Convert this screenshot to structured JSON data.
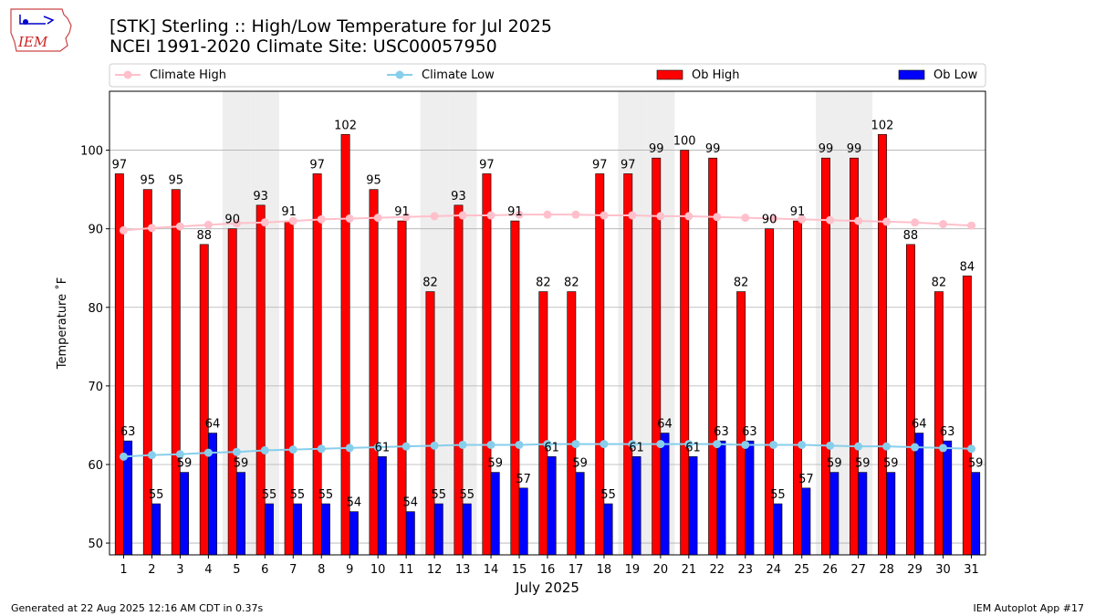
{
  "header": {
    "title_line1": "[STK] Sterling :: High/Low Temperature for Jul 2025",
    "title_line2": "NCEI 1991-2020 Climate Site: USC00057950"
  },
  "logo": {
    "text": "IEM"
  },
  "footer": {
    "left": "Generated at 22 Aug 2025 12:16 AM CDT in 0.37s",
    "right": "IEM Autoplot App #17"
  },
  "colors": {
    "ob_high": "#ff0000",
    "ob_low": "#0000ff",
    "climate_high": "#ffc0cb",
    "climate_low": "#87ceeb",
    "weekend_shade": "#eeeeee",
    "grid": "#b0b0b0"
  },
  "chart_data": {
    "type": "bar",
    "title": "[STK] Sterling :: High/Low Temperature for Jul 2025",
    "xlabel": "July 2025",
    "ylabel": "Temperature ˚F",
    "ylim": [
      48.5,
      107.5
    ],
    "yticks": [
      50,
      60,
      70,
      80,
      90,
      100
    ],
    "grid": true,
    "legend_position": "top",
    "categories": [
      1,
      2,
      3,
      4,
      5,
      6,
      7,
      8,
      9,
      10,
      11,
      12,
      13,
      14,
      15,
      16,
      17,
      18,
      19,
      20,
      21,
      22,
      23,
      24,
      25,
      26,
      27,
      28,
      29,
      30,
      31
    ],
    "shaded_days": [
      5,
      6,
      12,
      13,
      19,
      20,
      26,
      27
    ],
    "series": [
      {
        "name": "Climate High",
        "kind": "line",
        "values": [
          89.8,
          90.1,
          90.3,
          90.5,
          90.7,
          90.8,
          91.0,
          91.2,
          91.3,
          91.4,
          91.5,
          91.6,
          91.7,
          91.7,
          91.8,
          91.8,
          91.8,
          91.7,
          91.7,
          91.6,
          91.6,
          91.5,
          91.4,
          91.3,
          91.2,
          91.1,
          91.0,
          90.9,
          90.8,
          90.6,
          90.4
        ]
      },
      {
        "name": "Climate Low",
        "kind": "line",
        "values": [
          61.0,
          61.2,
          61.3,
          61.5,
          61.6,
          61.8,
          61.9,
          62.0,
          62.1,
          62.2,
          62.3,
          62.4,
          62.5,
          62.5,
          62.5,
          62.6,
          62.6,
          62.6,
          62.6,
          62.6,
          62.6,
          62.6,
          62.5,
          62.5,
          62.5,
          62.4,
          62.3,
          62.3,
          62.2,
          62.1,
          62.0
        ]
      },
      {
        "name": "Ob High",
        "kind": "bar",
        "values": [
          97,
          95,
          95,
          88,
          90,
          93,
          91,
          97,
          102,
          95,
          91,
          82,
          93,
          97,
          91,
          82,
          82,
          97,
          97,
          99,
          100,
          99,
          82,
          90,
          91,
          99,
          99,
          102,
          88,
          82,
          84
        ]
      },
      {
        "name": "Ob Low",
        "kind": "bar",
        "values": [
          63,
          55,
          59,
          64,
          59,
          55,
          55,
          55,
          54,
          61,
          54,
          55,
          55,
          59,
          57,
          61,
          59,
          55,
          61,
          64,
          61,
          63,
          63,
          55,
          57,
          59,
          59,
          59,
          64,
          63,
          59
        ]
      }
    ]
  }
}
